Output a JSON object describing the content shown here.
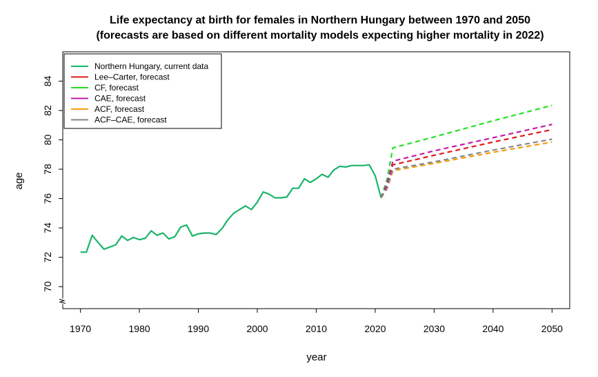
{
  "chart_data": {
    "type": "line",
    "title_line1": "Life expectancy at birth for females in Northern Hungary between 1970 and 2050",
    "title_line2": "(forecasts are based on different mortality models expecting higher mortality in 2022)",
    "xlabel": "year",
    "ylabel": "age",
    "xlim": [
      1967,
      2053
    ],
    "ylim": [
      68.5,
      86
    ],
    "x_ticks": [
      "1970",
      "1980",
      "1990",
      "2000",
      "2010",
      "2020",
      "2030",
      "2040",
      "2050"
    ],
    "y_ticks": [
      "70",
      "72",
      "74",
      "76",
      "78",
      "80",
      "82",
      "84"
    ],
    "axis_break_at_y": 69,
    "grid": false,
    "legend_position": "top-left",
    "series": [
      {
        "name": "Northern Hungary, current data",
        "color": "#19b46a",
        "dash": "solid",
        "x": [
          1970,
          1971,
          1972,
          1973,
          1974,
          1975,
          1976,
          1977,
          1978,
          1979,
          1980,
          1981,
          1982,
          1983,
          1984,
          1985,
          1986,
          1987,
          1988,
          1989,
          1990,
          1991,
          1992,
          1993,
          1994,
          1995,
          1996,
          1997,
          1998,
          1999,
          2000,
          2001,
          2002,
          2003,
          2004,
          2005,
          2006,
          2007,
          2008,
          2009,
          2010,
          2011,
          2012,
          2013,
          2014,
          2015,
          2016,
          2017,
          2018,
          2019,
          2020,
          2021
        ],
        "y": [
          72.35,
          72.35,
          73.5,
          73.0,
          72.55,
          72.7,
          72.85,
          73.45,
          73.15,
          73.35,
          73.2,
          73.3,
          73.8,
          73.5,
          73.65,
          73.25,
          73.4,
          74.05,
          74.2,
          73.45,
          73.6,
          73.65,
          73.65,
          73.55,
          73.95,
          74.55,
          75.0,
          75.25,
          75.5,
          75.25,
          75.75,
          76.45,
          76.3,
          76.05,
          76.05,
          76.1,
          76.7,
          76.7,
          77.35,
          77.1,
          77.35,
          77.65,
          77.45,
          77.95,
          78.2,
          78.15,
          78.25,
          78.25,
          78.25,
          78.3,
          77.55,
          76.05
        ]
      },
      {
        "name": "Lee–Carter, forecast",
        "color": "#e01919",
        "dash": "dashed",
        "x": [
          2021,
          2022,
          2023,
          2030,
          2040,
          2050
        ],
        "y": [
          76.05,
          76.9,
          78.3,
          78.95,
          79.85,
          80.7
        ]
      },
      {
        "name": "CF, forecast",
        "color": "#22e022",
        "dash": "dashed",
        "x": [
          2021,
          2022,
          2023,
          2030,
          2040,
          2050
        ],
        "y": [
          76.05,
          77.3,
          79.45,
          80.2,
          81.3,
          82.35
        ]
      },
      {
        "name": "CAE, forecast",
        "color": "#c21ba8",
        "dash": "dashed",
        "x": [
          2021,
          2022,
          2023,
          2030,
          2040,
          2050
        ],
        "y": [
          76.05,
          77.0,
          78.55,
          79.25,
          80.15,
          81.05
        ]
      },
      {
        "name": "ACF, forecast",
        "color": "#f59a0a",
        "dash": "dashed",
        "x": [
          2021,
          2022,
          2023,
          2030,
          2040,
          2050
        ],
        "y": [
          76.05,
          76.65,
          77.9,
          78.4,
          79.15,
          79.85
        ]
      },
      {
        "name": "ACF–CAE, forecast",
        "color": "#868686",
        "dash": "dashed",
        "x": [
          2021,
          2022,
          2023,
          2030,
          2040,
          2050
        ],
        "y": [
          76.05,
          76.7,
          78.0,
          78.5,
          79.3,
          80.05
        ]
      }
    ]
  }
}
